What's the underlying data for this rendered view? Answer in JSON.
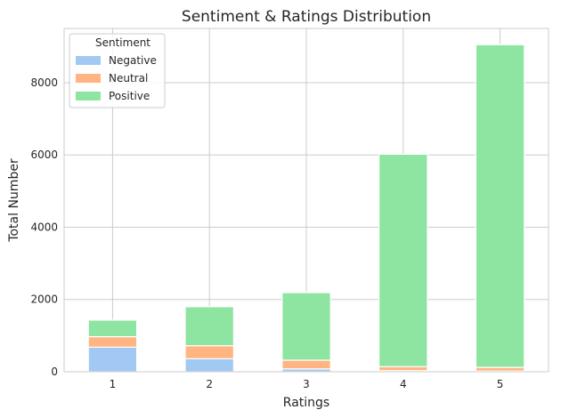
{
  "chart_data": {
    "type": "bar",
    "stacked": true,
    "title": "Sentiment & Ratings Distribution",
    "xlabel": "Ratings",
    "ylabel": "Total Number",
    "categories": [
      "1",
      "2",
      "3",
      "4",
      "5"
    ],
    "series": [
      {
        "name": "Negative",
        "color": "#a1c9f4",
        "values": [
          680,
          360,
          80,
          30,
          20
        ]
      },
      {
        "name": "Neutral",
        "color": "#ffb482",
        "values": [
          290,
          360,
          240,
          110,
          100
        ]
      },
      {
        "name": "Positive",
        "color": "#8de5a1",
        "values": [
          460,
          1080,
          1870,
          5880,
          8930
        ]
      }
    ],
    "ylim": [
      0,
      9500
    ],
    "yticks": [
      0,
      2000,
      4000,
      6000,
      8000
    ],
    "grid": true,
    "legend": {
      "title": "Sentiment",
      "position": "top-left"
    }
  }
}
